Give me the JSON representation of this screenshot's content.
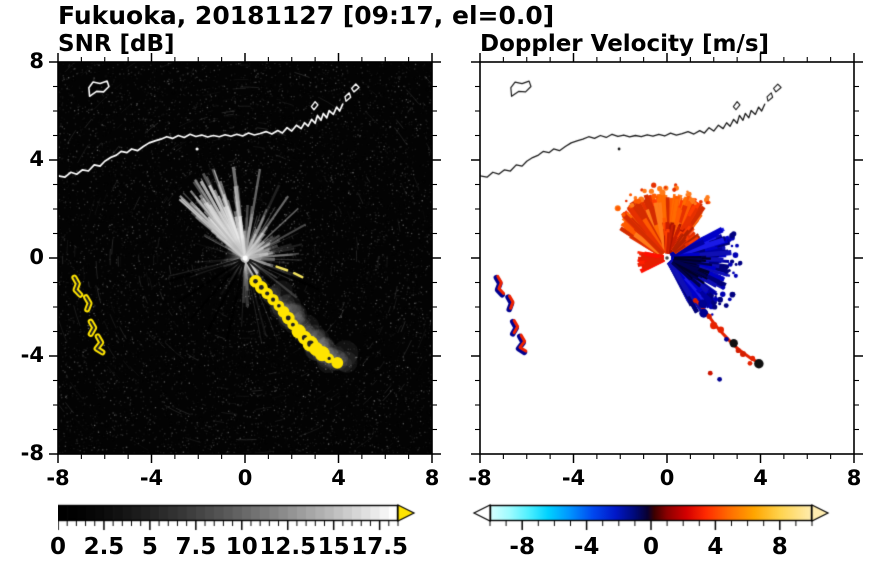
{
  "title": "Fukuoka, 20181127 [09:17, el=0.0]",
  "panels": {
    "snr": {
      "title": "SNR [dB]"
    },
    "vel": {
      "title": "Doppler Velocity [m/s]"
    }
  },
  "axes": {
    "xlim": [
      -8,
      8
    ],
    "ylim": [
      -8,
      8
    ],
    "xticks_major": [
      -8,
      -4,
      0,
      4,
      8
    ],
    "yticks_major": [
      -8,
      -4,
      0,
      4,
      8
    ],
    "minor_step": 1,
    "xtick_labels": [
      "-8",
      "-4",
      "0",
      "4",
      "8"
    ],
    "ytick_labels": [
      "-8",
      "-4",
      "0",
      "4",
      "8"
    ]
  },
  "colorbars": {
    "snr": {
      "range": [
        0,
        18.5
      ],
      "step": 0.5,
      "major": [
        0,
        2.5,
        5,
        7.5,
        10,
        12.5,
        15,
        17.5
      ],
      "labels": [
        "0",
        "2.5",
        "5",
        "7.5",
        "10",
        "12.5",
        "15",
        "17.5"
      ],
      "start_color": "#000000",
      "end_color": "#fafafa",
      "over_color": "#ffe400"
    },
    "vel": {
      "range": [
        -10,
        10
      ],
      "minor_step": 1,
      "major": [
        -8,
        -4,
        0,
        4,
        8
      ],
      "labels": [
        "-8",
        "-4",
        "0",
        "4",
        "8"
      ],
      "under_color": "#ffffff",
      "over_color": "#ffedb0",
      "stops": [
        [
          0,
          "#d8ffff"
        ],
        [
          0.06,
          "#9ffcff"
        ],
        [
          0.12,
          "#4ff0ff"
        ],
        [
          0.18,
          "#00d2ff"
        ],
        [
          0.25,
          "#0092ff"
        ],
        [
          0.32,
          "#0048f0"
        ],
        [
          0.39,
          "#0018c8"
        ],
        [
          0.45,
          "#000a78"
        ],
        [
          0.49,
          "#0a0030"
        ],
        [
          0.51,
          "#3c0000"
        ],
        [
          0.55,
          "#8c0000"
        ],
        [
          0.61,
          "#d40000"
        ],
        [
          0.67,
          "#ff2a00"
        ],
        [
          0.74,
          "#ff6a00"
        ],
        [
          0.82,
          "#ffa500"
        ],
        [
          0.9,
          "#ffd34d"
        ],
        [
          1,
          "#ffedb0"
        ]
      ]
    }
  },
  "chart_data": {
    "type": "heatmap",
    "subtype": "dual-panel Doppler radar PPI",
    "station": "Fukuoka",
    "date": "20181127",
    "time": "09:17",
    "elevation_deg": 0.0,
    "x_range_km": [
      -8,
      8
    ],
    "y_range_km": [
      -8,
      8
    ],
    "panels": [
      {
        "name": "SNR",
        "units": "dB",
        "colorbar_range": [
          0,
          18.5
        ],
        "colorbar_ticks": [
          0,
          2.5,
          5,
          7.5,
          10,
          12.5,
          15,
          17.5
        ],
        "colormap": "black-to-white grayscale, above-range values yellow",
        "content": "Gray radial echo fan centered on the radar at the origin, radius ~0.5-4 km, brightest toward N-NW; dark speckle noise over the full square; high-SNR yellow echo arc curving from (0.4,-0.9) to (4.0,-4.3); yellow echo clusters near x=-7.3..-6.1, y=-0.8..-3.9; white coastline along the top with harbor structures near (2.5..4.2, 5.2..6.3) and an island near (-6.7..-5.8, 6.6..7.2)"
      },
      {
        "name": "Doppler velocity",
        "units": "m/s",
        "colorbar_range": [
          -10,
          10
        ],
        "colorbar_ticks": [
          -8,
          -4,
          0,
          4,
          8
        ],
        "colormap": "cyan-blue negative, dark center, red-orange-yellow positive",
        "content": "Orange-red positive-velocity fan north of the radar (angles ~50-150 deg, radius ~2.7 km); dark-blue negative-velocity fan east-southeast (angles ~-62..28 deg, radius ~2.8 km); bright red wedge due west (radius ~1.3 km); red echo chain with blue flecks along the same SE arc as the SNR panel; paired red/blue cells near x=-7; coastline drawn in black"
      }
    ],
    "coastline": {
      "main": [
        [
          -8,
          3.35
        ],
        [
          -7.7,
          3.3
        ],
        [
          -7.45,
          3.5
        ],
        [
          -7.2,
          3.42
        ],
        [
          -6.95,
          3.6
        ],
        [
          -6.7,
          3.55
        ],
        [
          -6.45,
          3.8
        ],
        [
          -6.2,
          3.75
        ],
        [
          -6,
          3.95
        ],
        [
          -5.75,
          4.1
        ],
        [
          -5.5,
          4.2
        ],
        [
          -5.3,
          4.35
        ],
        [
          -5.05,
          4.3
        ],
        [
          -4.85,
          4.45
        ],
        [
          -4.6,
          4.38
        ],
        [
          -4.35,
          4.55
        ],
        [
          -4.1,
          4.7
        ],
        [
          -3.85,
          4.78
        ],
        [
          -3.6,
          4.85
        ],
        [
          -3.35,
          4.95
        ],
        [
          -3.1,
          4.88
        ],
        [
          -2.85,
          5
        ],
        [
          -2.6,
          4.92
        ],
        [
          -2.35,
          5.05
        ],
        [
          -2.1,
          4.96
        ],
        [
          -1.85,
          5.02
        ],
        [
          -1.6,
          4.94
        ],
        [
          -1.35,
          5
        ],
        [
          -1.1,
          4.95
        ],
        [
          -0.85,
          5.03
        ],
        [
          -0.6,
          4.97
        ],
        [
          -0.35,
          5.05
        ],
        [
          -0.1,
          4.98
        ],
        [
          0.15,
          5.1
        ],
        [
          0.4,
          5.02
        ],
        [
          0.65,
          5.08
        ],
        [
          0.9,
          5.16
        ],
        [
          1.15,
          5.06
        ],
        [
          1.4,
          5.2
        ],
        [
          1.6,
          5.1
        ],
        [
          1.8,
          5.32
        ],
        [
          2,
          5.18
        ],
        [
          2.2,
          5.42
        ],
        [
          2.4,
          5.28
        ],
        [
          2.55,
          5.52
        ],
        [
          2.7,
          5.38
        ],
        [
          2.85,
          5.66
        ],
        [
          3,
          5.5
        ],
        [
          3.1,
          5.82
        ],
        [
          3.25,
          5.62
        ],
        [
          3.35,
          5.9
        ],
        [
          3.5,
          5.72
        ],
        [
          3.6,
          6.02
        ],
        [
          3.78,
          5.86
        ],
        [
          3.92,
          6.16
        ],
        [
          4.05,
          6
        ],
        [
          4.18,
          6.28
        ]
      ],
      "island": [
        [
          -6.65,
          6.6
        ],
        [
          -6.35,
          6.8
        ],
        [
          -6.05,
          6.78
        ],
        [
          -5.82,
          7
        ],
        [
          -5.9,
          7.22
        ],
        [
          -6.2,
          7.12
        ],
        [
          -6.5,
          7.18
        ],
        [
          -6.68,
          6.95
        ]
      ],
      "isles": [
        [
          [
            4.32,
            6.4
          ],
          [
            4.52,
            6.56
          ],
          [
            4.46,
            6.74
          ],
          [
            4.28,
            6.58
          ]
        ],
        [
          [
            4.66,
            6.78
          ],
          [
            4.88,
            6.96
          ],
          [
            4.74,
            7.1
          ],
          [
            4.56,
            6.92
          ]
        ],
        [
          [
            2.95,
            6.05
          ],
          [
            3.12,
            6.25
          ],
          [
            3,
            6.38
          ],
          [
            2.84,
            6.18
          ]
        ]
      ],
      "islet_points": [
        [
          -2.05,
          4.45
        ]
      ]
    },
    "snr_features": {
      "fan": {
        "r_max": 4,
        "n_rays": 360,
        "bright_sector": [
          95,
          142
        ],
        "bright_n": 70,
        "east_sector": [
          -70,
          70
        ],
        "east_n": 45
      },
      "shadow_rays_deg": [
        196,
        212,
        227,
        242,
        257,
        302,
        322,
        338
      ],
      "se_chain": [
        [
          0.45,
          -0.95
        ],
        [
          0.7,
          -1.2
        ],
        [
          0.95,
          -1.45
        ],
        [
          1.2,
          -1.7
        ],
        [
          1.45,
          -1.95
        ],
        [
          1.65,
          -2.2
        ],
        [
          1.85,
          -2.45
        ],
        [
          2.05,
          -2.72
        ],
        [
          2.3,
          -3
        ],
        [
          2.55,
          -3.25
        ],
        [
          2.8,
          -3.5
        ],
        [
          3.05,
          -3.72
        ],
        [
          3.3,
          -3.9
        ],
        [
          3.6,
          -4.1
        ],
        [
          3.95,
          -4.28
        ]
      ],
      "left_clusters": [
        [
          [
            -7.3,
            -0.8
          ],
          [
            -7.15,
            -1.05
          ],
          [
            -7.25,
            -1.3
          ],
          [
            -7.05,
            -1.5
          ]
        ],
        [
          [
            -6.8,
            -1.6
          ],
          [
            -6.65,
            -1.85
          ],
          [
            -6.75,
            -2.1
          ]
        ],
        [
          [
            -6.6,
            -2.6
          ],
          [
            -6.45,
            -2.85
          ],
          [
            -6.6,
            -3.1
          ]
        ],
        [
          [
            -6.3,
            -3.2
          ],
          [
            -6.15,
            -3.45
          ],
          [
            -6.35,
            -3.7
          ],
          [
            -6.1,
            -3.85
          ]
        ]
      ],
      "center_dashes": [
        [
          [
            1.35,
            -0.35
          ],
          [
            1.8,
            -0.5
          ]
        ],
        [
          [
            2.1,
            -0.62
          ],
          [
            2.45,
            -0.78
          ]
        ]
      ]
    },
    "vel_features": {
      "lobes": [
        {
          "a0": 50,
          "a1": 150,
          "r0": 0.25,
          "r1": 2.75,
          "n": 220,
          "w0": 2.5,
          "w1": 5.5,
          "colors": [
            "#ff5a00",
            "#ff3c00",
            "#e63000",
            "#ff7b1a",
            "#d42c00",
            "#ff6a00"
          ]
        },
        {
          "a0": 55,
          "a1": 95,
          "r0": 0.2,
          "r1": 1.5,
          "n": 60,
          "w0": 2,
          "w1": 4,
          "colors": [
            "#c81e00",
            "#aa1400",
            "#ff4000"
          ]
        },
        {
          "a0": 168,
          "a1": 206,
          "r0": 0.15,
          "r1": 1.3,
          "n": 80,
          "w0": 2,
          "w1": 4.5,
          "colors": [
            "#ff2000",
            "#ff0f00",
            "#e61e00"
          ]
        },
        {
          "a0": -62,
          "a1": 28,
          "r0": 0.2,
          "r1": 2.8,
          "n": 260,
          "w0": 2.5,
          "w1": 5.5,
          "colors": [
            "#0000c8",
            "#0000a0",
            "#1a1ae6",
            "#000078",
            "#0f0fb4"
          ]
        },
        {
          "a0": -42,
          "a1": 10,
          "r0": 0.3,
          "r1": 2,
          "n": 40,
          "w0": 1.5,
          "w1": 3,
          "colors": [
            "#000028",
            "#000050"
          ]
        },
        {
          "a0": 30,
          "a1": 55,
          "r0": 0.4,
          "r1": 1.7,
          "n": 40,
          "w0": 1.5,
          "w1": 3,
          "colors": [
            "#e62e00",
            "#b32200",
            "#ff3c00"
          ]
        },
        {
          "a0": 50,
          "a1": 140,
          "r0": 2.5,
          "r1": 3.05,
          "n": 36,
          "dots": true,
          "colors": [
            "#ff5a00",
            "#e63000",
            "#ff7b1a"
          ]
        },
        {
          "a0": -55,
          "a1": 20,
          "r0": 2.6,
          "r1": 3.2,
          "n": 30,
          "dots": true,
          "colors": [
            "#0000b4",
            "#000080"
          ]
        }
      ],
      "se_chain_start": 3,
      "chain_colors": [
        "#e62200",
        "#e62200",
        "#d41e00",
        "#000090",
        "#101010"
      ],
      "extra_points": [
        [
          3.55,
          -4.3,
          "#e62200"
        ],
        [
          1.85,
          -4.7,
          "#cc1400"
        ],
        [
          2.25,
          -4.95,
          "#000090"
        ]
      ],
      "left_cluster_colors": {
        "back": "#000090",
        "front": "#ee2200"
      }
    }
  }
}
